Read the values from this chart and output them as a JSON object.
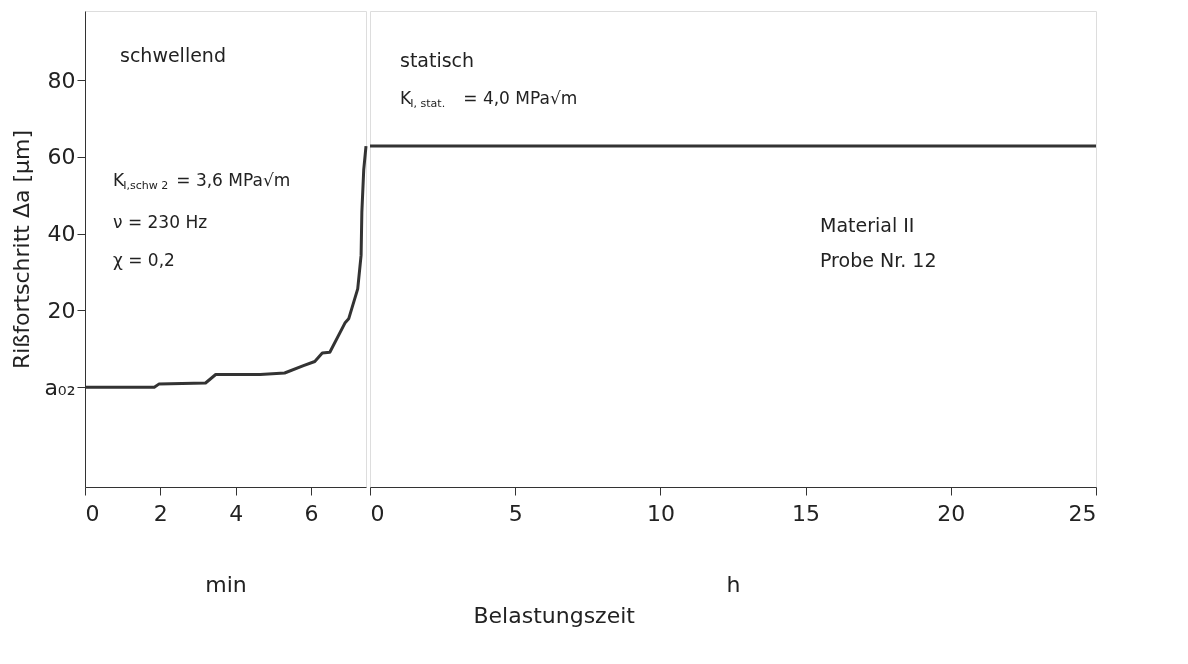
{
  "chart_data": [
    {
      "type": "line",
      "xlabel": "min",
      "ylabel": "Rißfortschritt Δa [μm]",
      "xlim": [
        0,
        7.46
      ],
      "xticks": [
        0,
        2,
        4,
        6
      ],
      "ylim": [
        -26,
        98
      ],
      "yticks": [
        {
          "value": 0,
          "label": "a₀₂"
        },
        20,
        40,
        60,
        80
      ],
      "grid": false,
      "color": "#333333",
      "x": [
        0,
        1.84,
        1.96,
        3.2,
        3.47,
        4.65,
        5.3,
        5.8,
        6.1,
        6.3,
        6.5,
        6.9,
        7.0,
        7.24,
        7.33,
        7.35,
        7.4,
        7.46
      ],
      "values": [
        0,
        0,
        0.8,
        1.1,
        3.3,
        3.3,
        3.7,
        5.6,
        6.7,
        8.9,
        9.1,
        16.7,
        17.8,
        25.6,
        34.4,
        45.6,
        56.7,
        62.8
      ],
      "annotations": [
        "schwellend",
        "K$_{I,schw 2}$ = 3,6 MPa√m",
        "ν = 230 Hz",
        "χ = 0,2",
        "Belastungszeit"
      ]
    },
    {
      "type": "line",
      "xlabel": "h",
      "xlim": [
        0,
        25
      ],
      "xticks": [
        0,
        5,
        10,
        15,
        20,
        25
      ],
      "ylim": [
        -26,
        98
      ],
      "tick_labels": "x",
      "grid": false,
      "color": "#333333",
      "x": [
        0,
        25
      ],
      "values": [
        62.8,
        62.8
      ],
      "annotations": [
        "statisch",
        "K$_{I, stat.}$ = 4,0 MPa√m",
        "Material II",
        "Probe Nr. 12"
      ]
    }
  ]
}
